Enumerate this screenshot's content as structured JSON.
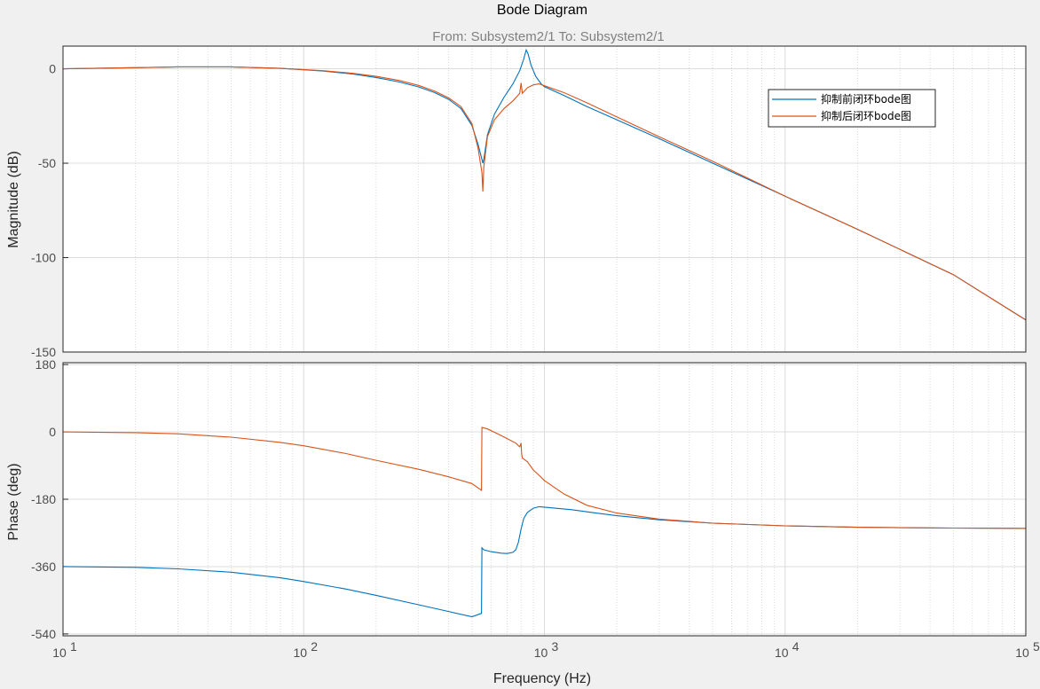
{
  "title": "Bode Diagram",
  "subtitle": "From: Subsystem2/1  To: Subsystem2/1",
  "xlabel": "Frequency  (Hz)",
  "colors": {
    "series1": "#0072BD",
    "series2": "#D95319",
    "grid": "#dcdcdc",
    "minor_grid": "#d2d2d2",
    "axes_bg": "#ffffff",
    "figure_bg": "#f0f0f0"
  },
  "legend": {
    "position": "top-right",
    "entries": [
      "抑制前闭环bode图",
      "抑制后闭环bode图"
    ]
  },
  "xticks": [
    {
      "base": "10",
      "exp": "1"
    },
    {
      "base": "10",
      "exp": "2"
    },
    {
      "base": "10",
      "exp": "3"
    },
    {
      "base": "10",
      "exp": "4"
    },
    {
      "base": "10",
      "exp": "5"
    }
  ],
  "chart_data": [
    {
      "type": "line",
      "name": "magnitude",
      "xscale": "log",
      "xlim": [
        10,
        100000
      ],
      "ylim": [
        -150,
        12
      ],
      "ylabel": "Magnitude (dB)",
      "yticks": [
        0,
        -50,
        -100,
        -150
      ],
      "grid": true,
      "series": [
        {
          "name": "抑制前闭环bode图",
          "points": [
            [
              10,
              0
            ],
            [
              20,
              0.6
            ],
            [
              30,
              1.0
            ],
            [
              50,
              1.0
            ],
            [
              80,
              0.2
            ],
            [
              120,
              -1.2
            ],
            [
              160,
              -2.8
            ],
            [
              200,
              -4.6
            ],
            [
              250,
              -7.0
            ],
            [
              300,
              -9.6
            ],
            [
              350,
              -12.6
            ],
            [
              400,
              -16.2
            ],
            [
              450,
              -21.0
            ],
            [
              500,
              -30.0
            ],
            [
              530,
              -40.0
            ],
            [
              550,
              -48.0
            ],
            [
              555,
              -50.0
            ],
            [
              560,
              -48.0
            ],
            [
              580,
              -35.0
            ],
            [
              620,
              -24.0
            ],
            [
              680,
              -15.0
            ],
            [
              740,
              -8.0
            ],
            [
              790,
              -1.0
            ],
            [
              820,
              5.0
            ],
            [
              840,
              10.0
            ],
            [
              855,
              8.0
            ],
            [
              880,
              2.0
            ],
            [
              920,
              -4.0
            ],
            [
              970,
              -8.0
            ],
            [
              1000,
              -9.5
            ],
            [
              1200,
              -14.0
            ],
            [
              1500,
              -20.0
            ],
            [
              2000,
              -27.0
            ],
            [
              3000,
              -37.0
            ],
            [
              5000,
              -50.0
            ],
            [
              10000,
              -67.5
            ],
            [
              20000,
              -85.0
            ],
            [
              50000,
              -109.0
            ],
            [
              100000,
              -133.0
            ]
          ]
        },
        {
          "name": "抑制后闭环bode图",
          "points": [
            [
              10,
              0
            ],
            [
              20,
              0.6
            ],
            [
              30,
              1.0
            ],
            [
              50,
              1.0
            ],
            [
              80,
              0.2
            ],
            [
              120,
              -1.0
            ],
            [
              160,
              -2.4
            ],
            [
              200,
              -4.0
            ],
            [
              250,
              -6.2
            ],
            [
              300,
              -8.8
            ],
            [
              350,
              -11.8
            ],
            [
              400,
              -15.4
            ],
            [
              450,
              -20.0
            ],
            [
              500,
              -29.0
            ],
            [
              530,
              -42.0
            ],
            [
              550,
              -55.0
            ],
            [
              555,
              -65.0
            ],
            [
              560,
              -52.0
            ],
            [
              580,
              -36.0
            ],
            [
              620,
              -27.0
            ],
            [
              680,
              -21.0
            ],
            [
              740,
              -17.0
            ],
            [
              790,
              -13.0
            ],
            [
              800,
              -7.5
            ],
            [
              810,
              -13.0
            ],
            [
              850,
              -10.0
            ],
            [
              900,
              -8.5
            ],
            [
              950,
              -8.0
            ],
            [
              1000,
              -9.0
            ],
            [
              1200,
              -12.5
            ],
            [
              1500,
              -18.0
            ],
            [
              2000,
              -25.5
            ],
            [
              3000,
              -36.0
            ],
            [
              5000,
              -49.0
            ],
            [
              10000,
              -67.5
            ],
            [
              20000,
              -85.0
            ],
            [
              50000,
              -109.0
            ],
            [
              100000,
              -133.0
            ]
          ]
        }
      ]
    },
    {
      "type": "line",
      "name": "phase",
      "xscale": "log",
      "xlim": [
        10,
        100000
      ],
      "ylim": [
        -545,
        185
      ],
      "ylabel": "Phase (deg)",
      "yticks": [
        180,
        0,
        -180,
        -360,
        -540
      ],
      "grid": true,
      "series": [
        {
          "name": "抑制前闭环bode图",
          "points": [
            [
              10,
              -360
            ],
            [
              20,
              -362
            ],
            [
              30,
              -366
            ],
            [
              50,
              -375
            ],
            [
              80,
              -390
            ],
            [
              100,
              -400
            ],
            [
              150,
              -420
            ],
            [
              200,
              -437
            ],
            [
              300,
              -462
            ],
            [
              400,
              -480
            ],
            [
              500,
              -494
            ],
            [
              548,
              -485
            ],
            [
              550,
              -310
            ],
            [
              560,
              -315
            ],
            [
              600,
              -320
            ],
            [
              660,
              -324
            ],
            [
              700,
              -325
            ],
            [
              740,
              -322
            ],
            [
              760,
              -315
            ],
            [
              780,
              -295
            ],
            [
              800,
              -260
            ],
            [
              820,
              -232
            ],
            [
              850,
              -215
            ],
            [
              900,
              -204
            ],
            [
              950,
              -200
            ],
            [
              1000,
              -201
            ],
            [
              1300,
              -208
            ],
            [
              1600,
              -216
            ],
            [
              2000,
              -224
            ],
            [
              3000,
              -235
            ],
            [
              5000,
              -244
            ],
            [
              10000,
              -251
            ],
            [
              20000,
              -255
            ],
            [
              50000,
              -257
            ],
            [
              100000,
              -258
            ]
          ]
        },
        {
          "name": "抑制后闭环bode图",
          "points": [
            [
              10,
              0
            ],
            [
              20,
              -2
            ],
            [
              30,
              -5
            ],
            [
              50,
              -14
            ],
            [
              80,
              -28
            ],
            [
              100,
              -37
            ],
            [
              150,
              -58
            ],
            [
              200,
              -76
            ],
            [
              300,
              -100
            ],
            [
              400,
              -120
            ],
            [
              500,
              -138
            ],
            [
              548,
              -156
            ],
            [
              550,
              12
            ],
            [
              580,
              8
            ],
            [
              640,
              -5
            ],
            [
              700,
              -18
            ],
            [
              760,
              -30
            ],
            [
              790,
              -40
            ],
            [
              800,
              -30
            ],
            [
              805,
              -60
            ],
            [
              810,
              -70
            ],
            [
              850,
              -80
            ],
            [
              900,
              -102
            ],
            [
              950,
              -116
            ],
            [
              1000,
              -130
            ],
            [
              1200,
              -165
            ],
            [
              1500,
              -196
            ],
            [
              2000,
              -217
            ],
            [
              3000,
              -233
            ],
            [
              5000,
              -244
            ],
            [
              10000,
              -251
            ],
            [
              20000,
              -255
            ],
            [
              50000,
              -257
            ],
            [
              100000,
              -258
            ]
          ]
        }
      ]
    }
  ]
}
